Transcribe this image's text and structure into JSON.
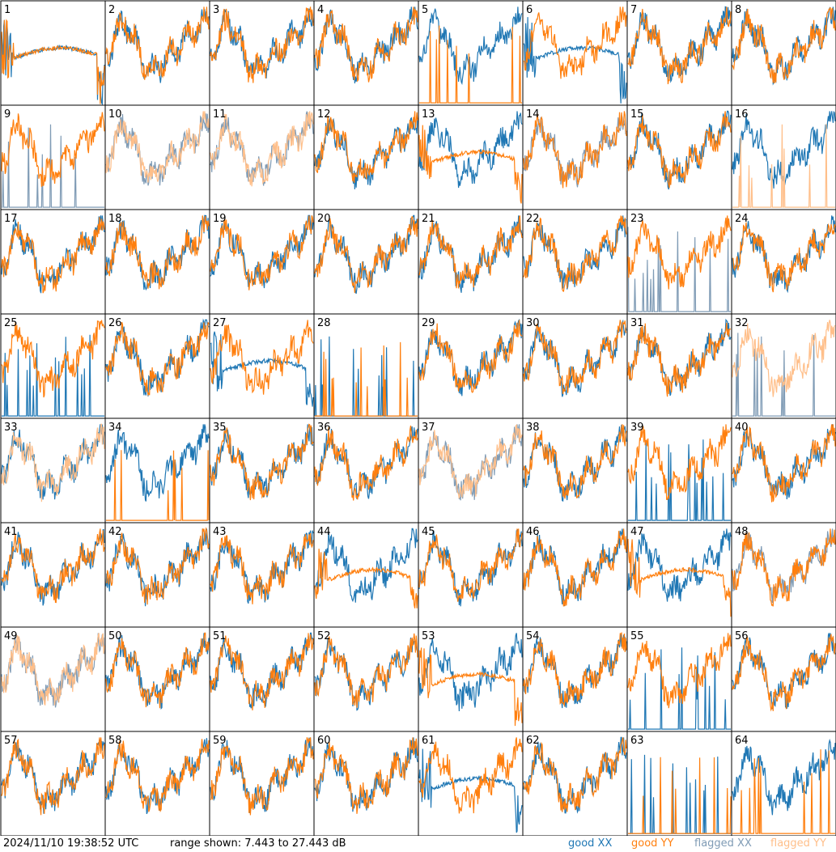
{
  "footer": {
    "timestamp": "2024/11/10 19:38:52 UTC",
    "range": "range shown: 7.443 to 27.443 dB",
    "legend": [
      "good XX",
      "good YY",
      "flagged XX",
      "flagged YY"
    ]
  },
  "colors": {
    "good_xx": "#1f77b4",
    "good_yy": "#ff7f0e",
    "flagged_xx": "#7f9bb5",
    "flagged_yy": "#ffbf8a"
  },
  "chart_data": {
    "type": "line",
    "grid_layout": "8x8",
    "y_range_db": [
      7.443,
      27.443
    ],
    "panels": [
      {
        "label": "1",
        "xx": "good",
        "yy": "good",
        "xx_kind": "drop",
        "yy_kind": "drop"
      },
      {
        "label": "2",
        "xx": "good",
        "yy": "good",
        "xx_kind": "normal",
        "yy_kind": "normal"
      },
      {
        "label": "3",
        "xx": "good",
        "yy": "good",
        "xx_kind": "normal",
        "yy_kind": "normal"
      },
      {
        "label": "4",
        "xx": "good",
        "yy": "good",
        "xx_kind": "normal",
        "yy_kind": "normal"
      },
      {
        "label": "5",
        "xx": "good",
        "yy": "good",
        "xx_kind": "normal",
        "yy_kind": "spikes"
      },
      {
        "label": "6",
        "xx": "good",
        "yy": "good",
        "xx_kind": "drop",
        "yy_kind": "normal"
      },
      {
        "label": "7",
        "xx": "good",
        "yy": "good",
        "xx_kind": "normal",
        "yy_kind": "normal"
      },
      {
        "label": "8",
        "xx": "good",
        "yy": "good",
        "xx_kind": "normal",
        "yy_kind": "normal"
      },
      {
        "label": "9",
        "xx": "flagged",
        "yy": "good",
        "xx_kind": "spikes",
        "yy_kind": "normal"
      },
      {
        "label": "10",
        "xx": "flagged",
        "yy": "flagged",
        "xx_kind": "normal",
        "yy_kind": "normal"
      },
      {
        "label": "11",
        "xx": "flagged",
        "yy": "flagged",
        "xx_kind": "normal",
        "yy_kind": "normal"
      },
      {
        "label": "12",
        "xx": "good",
        "yy": "good",
        "xx_kind": "normal",
        "yy_kind": "normal"
      },
      {
        "label": "13",
        "xx": "good",
        "yy": "good",
        "xx_kind": "normal",
        "yy_kind": "drop"
      },
      {
        "label": "14",
        "xx": "flagged",
        "yy": "good",
        "xx_kind": "normal",
        "yy_kind": "normal"
      },
      {
        "label": "15",
        "xx": "good",
        "yy": "good",
        "xx_kind": "normal",
        "yy_kind": "normal"
      },
      {
        "label": "16",
        "xx": "good",
        "yy": "flagged",
        "xx_kind": "normal",
        "yy_kind": "spikes"
      },
      {
        "label": "17",
        "xx": "good",
        "yy": "good",
        "xx_kind": "normal",
        "yy_kind": "normal"
      },
      {
        "label": "18",
        "xx": "good",
        "yy": "good",
        "xx_kind": "normal",
        "yy_kind": "normal"
      },
      {
        "label": "19",
        "xx": "good",
        "yy": "good",
        "xx_kind": "normal",
        "yy_kind": "normal"
      },
      {
        "label": "20",
        "xx": "good",
        "yy": "good",
        "xx_kind": "normal",
        "yy_kind": "normal"
      },
      {
        "label": "21",
        "xx": "good",
        "yy": "good",
        "xx_kind": "normal",
        "yy_kind": "normal"
      },
      {
        "label": "22",
        "xx": "good",
        "yy": "good",
        "xx_kind": "normal",
        "yy_kind": "normal"
      },
      {
        "label": "23",
        "xx": "flagged",
        "yy": "good",
        "xx_kind": "spikes",
        "yy_kind": "normal"
      },
      {
        "label": "24",
        "xx": "good",
        "yy": "good",
        "xx_kind": "normal",
        "yy_kind": "normal"
      },
      {
        "label": "25",
        "xx": "good",
        "yy": "good",
        "xx_kind": "spikes",
        "yy_kind": "normal"
      },
      {
        "label": "26",
        "xx": "good",
        "yy": "good",
        "xx_kind": "normal",
        "yy_kind": "normal"
      },
      {
        "label": "27",
        "xx": "good",
        "yy": "good",
        "xx_kind": "drop",
        "yy_kind": "normal"
      },
      {
        "label": "28",
        "xx": "good",
        "yy": "good",
        "xx_kind": "spikes",
        "yy_kind": "spikes"
      },
      {
        "label": "29",
        "xx": "good",
        "yy": "good",
        "xx_kind": "normal",
        "yy_kind": "normal"
      },
      {
        "label": "30",
        "xx": "good",
        "yy": "good",
        "xx_kind": "normal",
        "yy_kind": "normal"
      },
      {
        "label": "31",
        "xx": "good",
        "yy": "good",
        "xx_kind": "normal",
        "yy_kind": "normal"
      },
      {
        "label": "32",
        "xx": "flagged",
        "yy": "flagged",
        "xx_kind": "spikes",
        "yy_kind": "normal"
      },
      {
        "label": "33",
        "xx": "good",
        "yy": "flagged",
        "xx_kind": "normal",
        "yy_kind": "normal"
      },
      {
        "label": "34",
        "xx": "good",
        "yy": "good",
        "xx_kind": "normal",
        "yy_kind": "spikes"
      },
      {
        "label": "35",
        "xx": "good",
        "yy": "good",
        "xx_kind": "normal",
        "yy_kind": "normal"
      },
      {
        "label": "36",
        "xx": "good",
        "yy": "good",
        "xx_kind": "normal",
        "yy_kind": "normal"
      },
      {
        "label": "37",
        "xx": "flagged",
        "yy": "flagged",
        "xx_kind": "normal",
        "yy_kind": "normal"
      },
      {
        "label": "38",
        "xx": "good",
        "yy": "good",
        "xx_kind": "normal",
        "yy_kind": "normal"
      },
      {
        "label": "39",
        "xx": "good",
        "yy": "good",
        "xx_kind": "spikes",
        "yy_kind": "normal"
      },
      {
        "label": "40",
        "xx": "good",
        "yy": "good",
        "xx_kind": "normal",
        "yy_kind": "normal"
      },
      {
        "label": "41",
        "xx": "good",
        "yy": "good",
        "xx_kind": "normal",
        "yy_kind": "normal"
      },
      {
        "label": "42",
        "xx": "good",
        "yy": "good",
        "xx_kind": "normal",
        "yy_kind": "normal"
      },
      {
        "label": "43",
        "xx": "good",
        "yy": "good",
        "xx_kind": "normal",
        "yy_kind": "normal"
      },
      {
        "label": "44",
        "xx": "good",
        "yy": "good",
        "xx_kind": "normal",
        "yy_kind": "drop"
      },
      {
        "label": "45",
        "xx": "good",
        "yy": "good",
        "xx_kind": "normal",
        "yy_kind": "normal"
      },
      {
        "label": "46",
        "xx": "good",
        "yy": "good",
        "xx_kind": "normal",
        "yy_kind": "normal"
      },
      {
        "label": "47",
        "xx": "good",
        "yy": "good",
        "xx_kind": "normal",
        "yy_kind": "drop"
      },
      {
        "label": "48",
        "xx": "flagged",
        "yy": "good",
        "xx_kind": "normal",
        "yy_kind": "normal"
      },
      {
        "label": "49",
        "xx": "flagged",
        "yy": "flagged",
        "xx_kind": "normal",
        "yy_kind": "normal"
      },
      {
        "label": "50",
        "xx": "good",
        "yy": "good",
        "xx_kind": "normal",
        "yy_kind": "normal"
      },
      {
        "label": "51",
        "xx": "good",
        "yy": "good",
        "xx_kind": "normal",
        "yy_kind": "normal"
      },
      {
        "label": "52",
        "xx": "good",
        "yy": "good",
        "xx_kind": "normal",
        "yy_kind": "normal"
      },
      {
        "label": "53",
        "xx": "good",
        "yy": "good",
        "xx_kind": "normal",
        "yy_kind": "drop"
      },
      {
        "label": "54",
        "xx": "good",
        "yy": "good",
        "xx_kind": "normal",
        "yy_kind": "normal"
      },
      {
        "label": "55",
        "xx": "good",
        "yy": "good",
        "xx_kind": "spikes",
        "yy_kind": "normal"
      },
      {
        "label": "56",
        "xx": "good",
        "yy": "good",
        "xx_kind": "normal",
        "yy_kind": "normal"
      },
      {
        "label": "57",
        "xx": "good",
        "yy": "good",
        "xx_kind": "normal",
        "yy_kind": "normal"
      },
      {
        "label": "58",
        "xx": "good",
        "yy": "good",
        "xx_kind": "normal",
        "yy_kind": "normal"
      },
      {
        "label": "59",
        "xx": "good",
        "yy": "good",
        "xx_kind": "normal",
        "yy_kind": "normal"
      },
      {
        "label": "60",
        "xx": "good",
        "yy": "good",
        "xx_kind": "normal",
        "yy_kind": "normal"
      },
      {
        "label": "61",
        "xx": "good",
        "yy": "good",
        "xx_kind": "drop",
        "yy_kind": "normal"
      },
      {
        "label": "62",
        "xx": "good",
        "yy": "good",
        "xx_kind": "normal",
        "yy_kind": "normal"
      },
      {
        "label": "63",
        "xx": "good",
        "yy": "good",
        "xx_kind": "spikes",
        "yy_kind": "spikes"
      },
      {
        "label": "64",
        "xx": "good",
        "yy": "good",
        "xx_kind": "normal",
        "yy_kind": "spikes"
      }
    ]
  }
}
